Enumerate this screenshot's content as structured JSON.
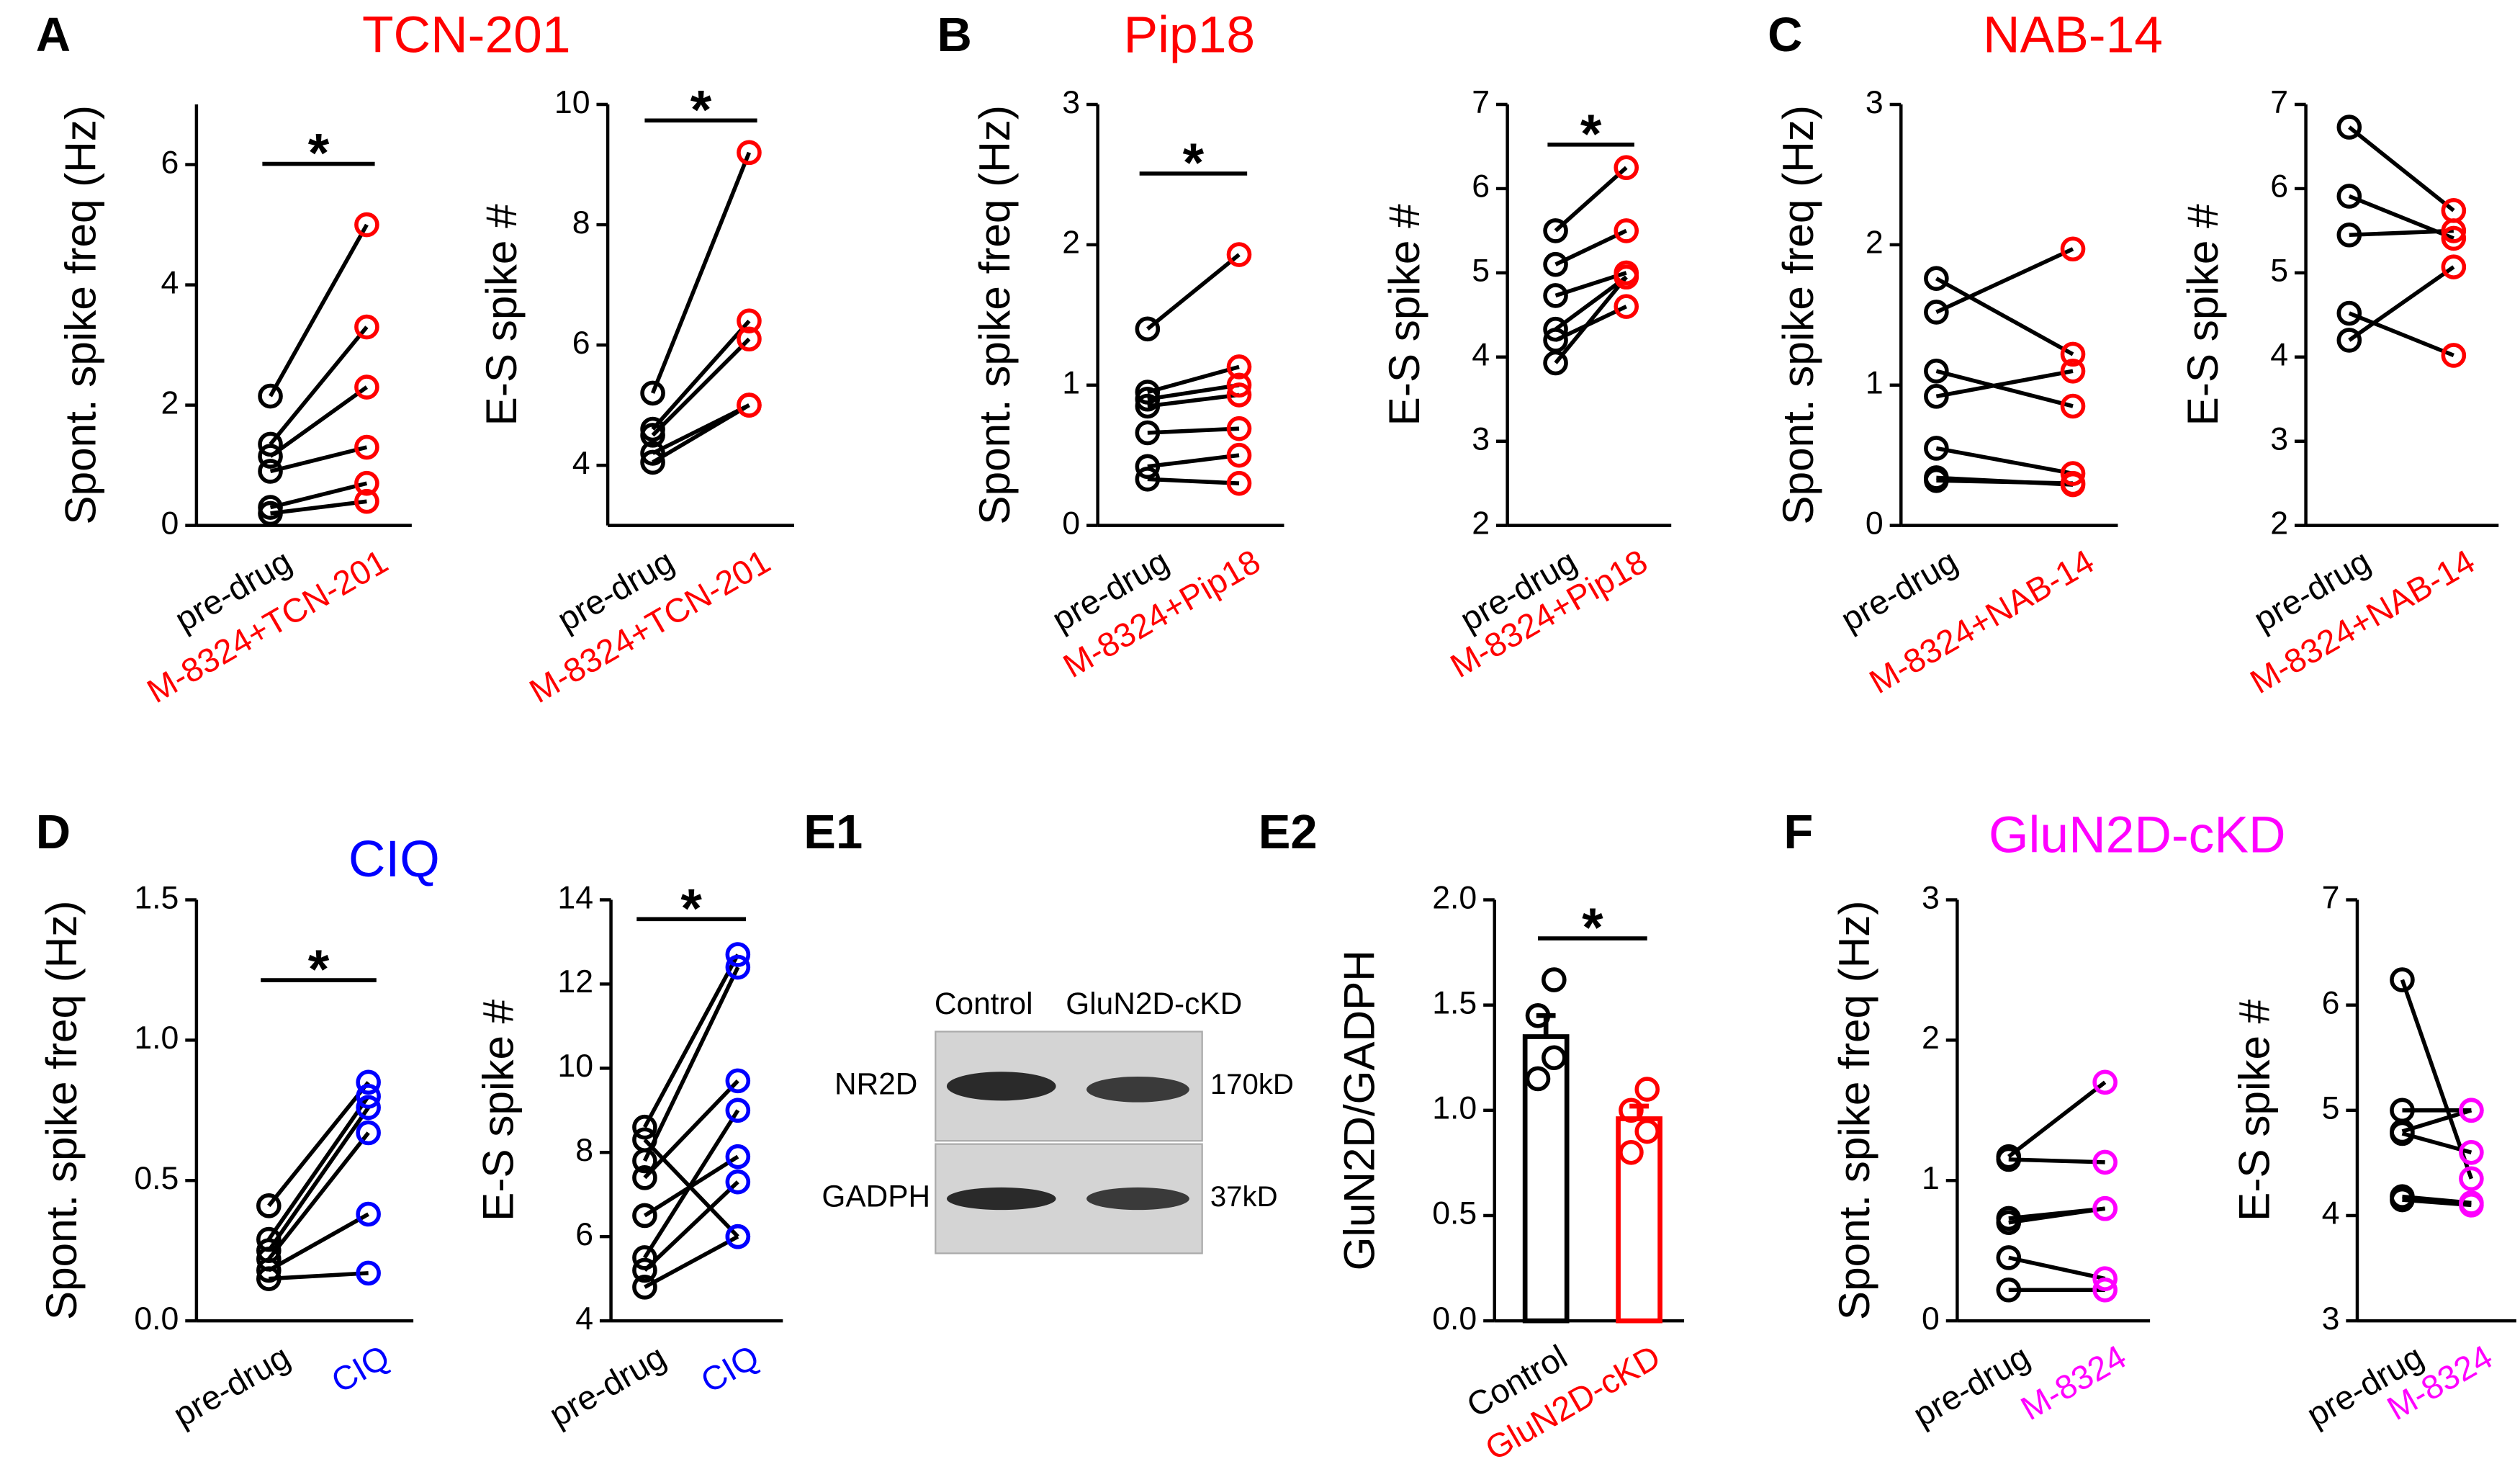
{
  "chart_data": [
    {
      "type": "paired",
      "panel": "A",
      "title": "TCN-201",
      "title_color": "#ff0000",
      "ylabel": "Spont. spike freq (Hz)",
      "categories": [
        "pre-drug",
        "M-8324+TCN-201"
      ],
      "colors": [
        "#000000",
        "#ff0000"
      ],
      "pairs": [
        [
          2.15,
          5.0
        ],
        [
          1.35,
          3.3
        ],
        [
          1.15,
          2.3
        ],
        [
          0.9,
          1.3
        ],
        [
          0.3,
          0.7
        ],
        [
          0.2,
          0.4
        ]
      ],
      "ylim": [
        0,
        7
      ],
      "yticks": [
        0,
        2,
        4,
        6
      ],
      "significance": "*"
    },
    {
      "type": "paired",
      "ylabel": "E-S spike #",
      "categories": [
        "pre-drug",
        "M-8324+TCN-201"
      ],
      "colors": [
        "#000000",
        "#ff0000"
      ],
      "pairs": [
        [
          5.2,
          9.2
        ],
        [
          4.6,
          6.4
        ],
        [
          4.5,
          6.1
        ],
        [
          4.2,
          5.0
        ],
        [
          4.05,
          5.0
        ]
      ],
      "ylim": [
        3,
        10
      ],
      "yticks": [
        4,
        6,
        8,
        10
      ],
      "significance": "*"
    },
    {
      "type": "paired",
      "panel": "B",
      "title": "Pip18",
      "title_color": "#ff0000",
      "ylabel": "Spont. spike freq (Hz)",
      "categories": [
        "pre-drug",
        "M-8324+Pip18"
      ],
      "colors": [
        "#000000",
        "#ff0000"
      ],
      "pairs": [
        [
          1.4,
          1.93
        ],
        [
          0.95,
          1.13
        ],
        [
          0.9,
          1.0
        ],
        [
          0.85,
          0.93
        ],
        [
          0.66,
          0.69
        ],
        [
          0.42,
          0.5
        ],
        [
          0.33,
          0.3
        ]
      ],
      "ylim": [
        0,
        3
      ],
      "yticks": [
        0,
        1,
        2,
        3
      ],
      "significance": "*"
    },
    {
      "type": "paired",
      "ylabel": "E-S spike #",
      "categories": [
        "pre-drug",
        "M-8324+Pip18"
      ],
      "colors": [
        "#000000",
        "#ff0000"
      ],
      "pairs": [
        [
          5.5,
          6.25
        ],
        [
          5.1,
          5.5
        ],
        [
          4.73,
          5.0
        ],
        [
          4.33,
          4.95
        ],
        [
          4.2,
          4.6
        ],
        [
          3.93,
          4.95
        ]
      ],
      "ylim": [
        2,
        7
      ],
      "yticks": [
        2,
        3,
        4,
        5,
        6,
        7
      ],
      "significance": "*"
    },
    {
      "type": "paired",
      "panel": "C",
      "title": "NAB-14",
      "title_color": "#ff0000",
      "ylabel": "Spont. spike freq (Hz)",
      "categories": [
        "pre-drug",
        "M-8324+NAB-14"
      ],
      "colors": [
        "#000000",
        "#ff0000"
      ],
      "pairs": [
        [
          1.76,
          1.22
        ],
        [
          1.52,
          1.97
        ],
        [
          1.1,
          0.85
        ],
        [
          0.92,
          1.1
        ],
        [
          0.55,
          0.37
        ],
        [
          0.34,
          0.29
        ],
        [
          0.32,
          0.3
        ]
      ],
      "ylim": [
        0,
        3
      ],
      "yticks": [
        0,
        1,
        2,
        3
      ]
    },
    {
      "type": "paired",
      "ylabel": "E-S spike #",
      "categories": [
        "pre-drug",
        "M-8324+NAB-14"
      ],
      "colors": [
        "#000000",
        "#ff0000"
      ],
      "pairs": [
        [
          6.73,
          5.74
        ],
        [
          5.91,
          5.41
        ],
        [
          5.45,
          5.5
        ],
        [
          4.52,
          4.02
        ],
        [
          4.2,
          5.07
        ]
      ],
      "ylim": [
        2,
        7
      ],
      "yticks": [
        2,
        3,
        4,
        5,
        6,
        7
      ]
    },
    {
      "type": "paired",
      "panel": "D",
      "title": "CIQ",
      "title_color": "#0000ff",
      "ylabel": "Spont. spike freq (Hz)",
      "categories": [
        "pre-drug",
        "CIQ"
      ],
      "colors": [
        "#000000",
        "#0000ff"
      ],
      "pairs": [
        [
          0.41,
          0.85
        ],
        [
          0.29,
          0.8
        ],
        [
          0.25,
          0.76
        ],
        [
          0.22,
          0.67
        ],
        [
          0.18,
          0.38
        ],
        [
          0.15,
          0.17
        ]
      ],
      "ylim": [
        0,
        1.5
      ],
      "yticks": [
        {
          "value": 0,
          "label": "0.0"
        },
        0.5,
        {
          "value": 1,
          "label": "1.0"
        },
        1.5
      ],
      "significance": "*"
    },
    {
      "type": "paired",
      "ylabel": "E-S spike #",
      "categories": [
        "pre-drug",
        "CIQ"
      ],
      "colors": [
        "#000000",
        "#0000ff"
      ],
      "pairs": [
        [
          8.6,
          12.7
        ],
        [
          8.3,
          6.0
        ],
        [
          7.8,
          12.4
        ],
        [
          7.4,
          9.7
        ],
        [
          6.5,
          7.9
        ],
        [
          5.5,
          9.0
        ],
        [
          5.2,
          7.3
        ],
        [
          4.8,
          6.0
        ]
      ],
      "ylim": [
        4,
        14
      ],
      "yticks": [
        4,
        6,
        8,
        10,
        12,
        14
      ],
      "significance": "*"
    },
    {
      "type": "bar",
      "panel": "E2",
      "ylabel": "GluN2D/GADPH",
      "categories": [
        "Control",
        "GluN2D-cKD"
      ],
      "colors": [
        "#000000",
        "#ff0000"
      ],
      "values": [
        1.35,
        0.96
      ],
      "errors": [
        0.1,
        0.06
      ],
      "points": [
        [
          1.62,
          1.45,
          1.25,
          1.15
        ],
        [
          1.1,
          1.0,
          0.9,
          0.8
        ]
      ],
      "ylim": [
        0,
        2
      ],
      "yticks": [
        {
          "value": 0,
          "label": "0.0"
        },
        0.5,
        {
          "value": 1,
          "label": "1.0"
        },
        1.5,
        {
          "value": 2,
          "label": "2.0"
        }
      ],
      "significance": "*"
    },
    {
      "type": "paired",
      "panel": "F",
      "title": "GluN2D-cKD",
      "title_color": "#ff00ff",
      "ylabel": "Spont. spike freq (Hz)",
      "categories": [
        "pre-drug",
        "M-8324"
      ],
      "colors": [
        "#000000",
        "#ff00ff"
      ],
      "pairs": [
        [
          1.17,
          1.7
        ],
        [
          1.15,
          1.13
        ],
        [
          0.73,
          0.8
        ],
        [
          0.7,
          0.8
        ],
        [
          0.45,
          0.3
        ],
        [
          0.22,
          0.22
        ]
      ],
      "ylim": [
        0,
        3
      ],
      "yticks": [
        0,
        1,
        2,
        3
      ]
    },
    {
      "type": "paired",
      "ylabel": "E-S spike #",
      "categories": [
        "pre-drug",
        "M-8324"
      ],
      "colors": [
        "#000000",
        "#ff00ff"
      ],
      "pairs": [
        [
          6.24,
          4.35
        ],
        [
          5.0,
          5.0
        ],
        [
          4.8,
          5.0
        ],
        [
          4.78,
          4.6
        ],
        [
          4.18,
          4.12
        ],
        [
          4.15,
          4.1
        ]
      ],
      "ylim": [
        3,
        7
      ],
      "yticks": [
        3,
        4,
        5,
        6,
        7
      ]
    }
  ],
  "blot": {
    "panel": "E1",
    "lanes": [
      "Control",
      "GluN2D-cKD"
    ],
    "bands": [
      {
        "name": "NR2D",
        "size": "170kD"
      },
      {
        "name": "GADPH",
        "size": "37kD"
      }
    ]
  }
}
